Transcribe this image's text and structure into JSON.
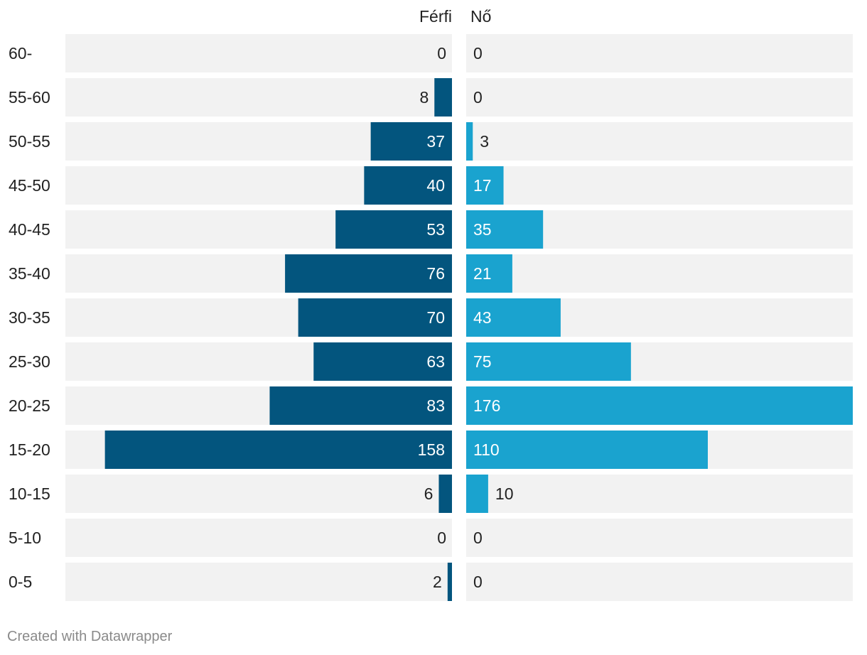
{
  "chart_data": {
    "type": "bar",
    "orientation": "horizontal",
    "layout": "population-pyramid",
    "categories": [
      "60-",
      "55-60",
      "50-55",
      "45-50",
      "40-45",
      "35-40",
      "30-35",
      "25-30",
      "20-25",
      "15-20",
      "10-15",
      "5-10",
      "0-5"
    ],
    "series": [
      {
        "name": "Férfi",
        "color": "#03557e",
        "values": [
          0,
          8,
          37,
          40,
          53,
          76,
          70,
          63,
          83,
          158,
          6,
          0,
          2
        ]
      },
      {
        "name": "Nő",
        "color": "#1aa3cf",
        "values": [
          0,
          0,
          3,
          17,
          35,
          21,
          43,
          75,
          176,
          110,
          10,
          0,
          0
        ]
      }
    ],
    "xlim": [
      0,
      176
    ],
    "title": "",
    "xlabel": "",
    "ylabel": "",
    "background_bar_color": "#f2f2f2"
  },
  "footer": {
    "credit": "Created with Datawrapper"
  }
}
